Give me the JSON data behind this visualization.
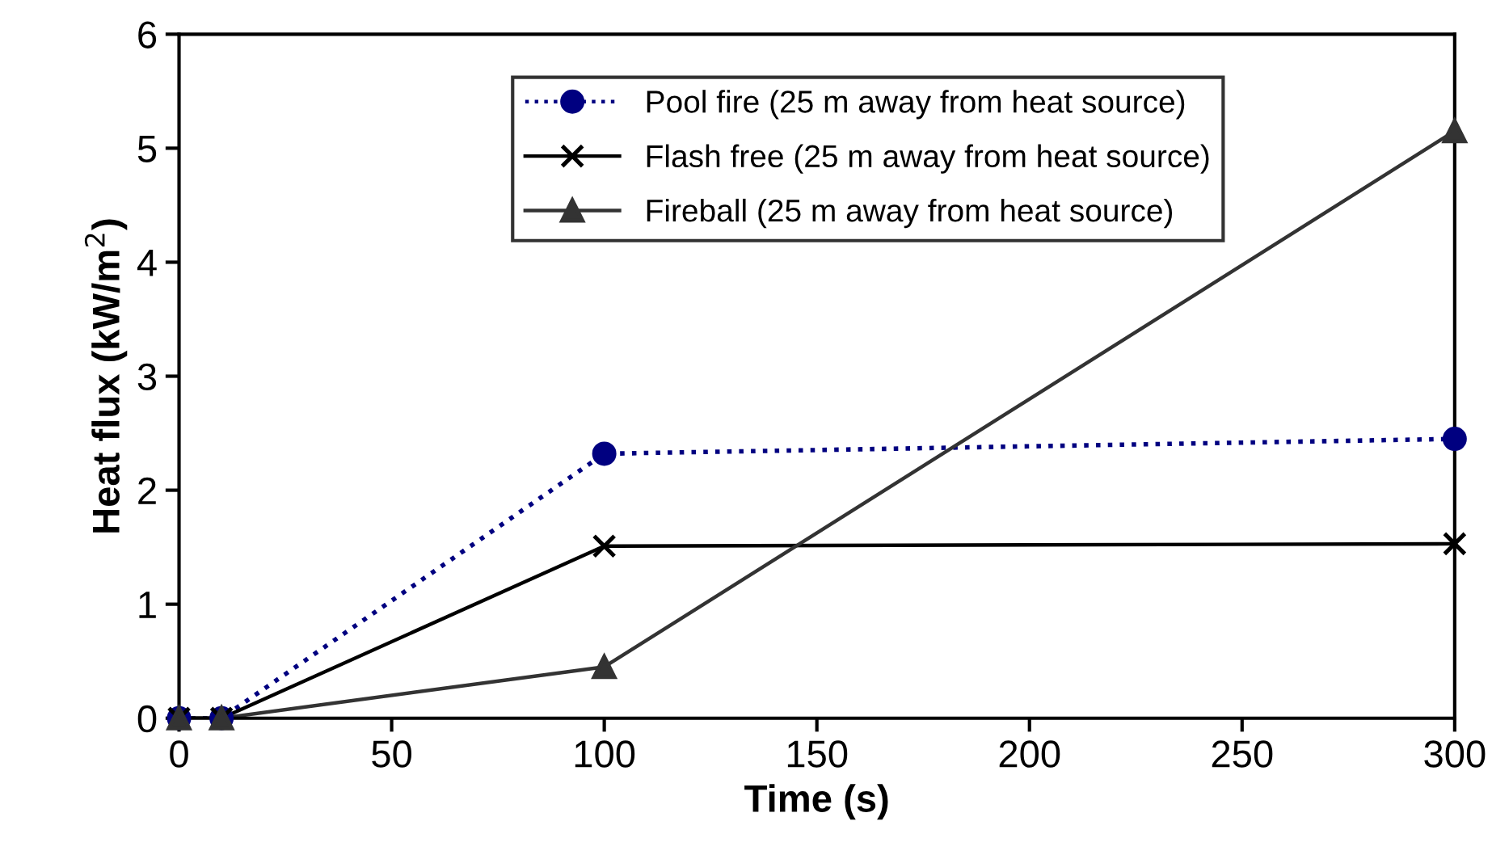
{
  "chart_data": {
    "type": "line",
    "xlabel": "Time (s)",
    "ylabel": "Heat flux (kW/m$^{2}$)",
    "x": [
      0,
      10,
      100,
      300
    ],
    "series": [
      {
        "name": "Pool fire (25 m away from heat source)",
        "color": "#000080",
        "values": [
          0,
          0,
          2.32,
          2.45
        ],
        "marker": "circle",
        "line_style": "dotted"
      },
      {
        "name": "Flash free (25 m away from heat source)",
        "color": "#000000",
        "values": [
          0,
          0,
          1.51,
          1.53
        ],
        "marker": "cross",
        "line_style": "solid"
      },
      {
        "name": "Fireball (25 m away from heat source)",
        "color": "#333333",
        "values": [
          0,
          0,
          0.45,
          5.15
        ],
        "marker": "triangle",
        "line_style": "solid"
      }
    ],
    "xlim": [
      0,
      300
    ],
    "xticks": [
      0,
      50,
      100,
      150,
      200,
      250,
      300
    ],
    "ylim": [
      0,
      6
    ],
    "yticks": [
      0,
      1,
      2,
      3,
      4,
      5,
      6
    ],
    "grid": false,
    "legend": "top"
  }
}
